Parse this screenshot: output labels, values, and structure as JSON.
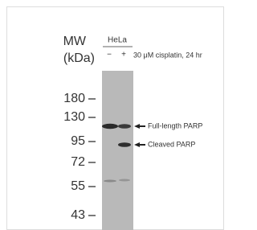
{
  "header": {
    "mw": "MW",
    "unit": "(kDa)",
    "cell_line": "HeLa",
    "minus": "−",
    "plus": "+",
    "treatment": "30 μM cisplatin, 24 hr"
  },
  "markers": [
    "180",
    "130",
    "95",
    "72",
    "55",
    "43"
  ],
  "bands": [
    "Full-length PARP",
    "Cleaved PARP"
  ]
}
